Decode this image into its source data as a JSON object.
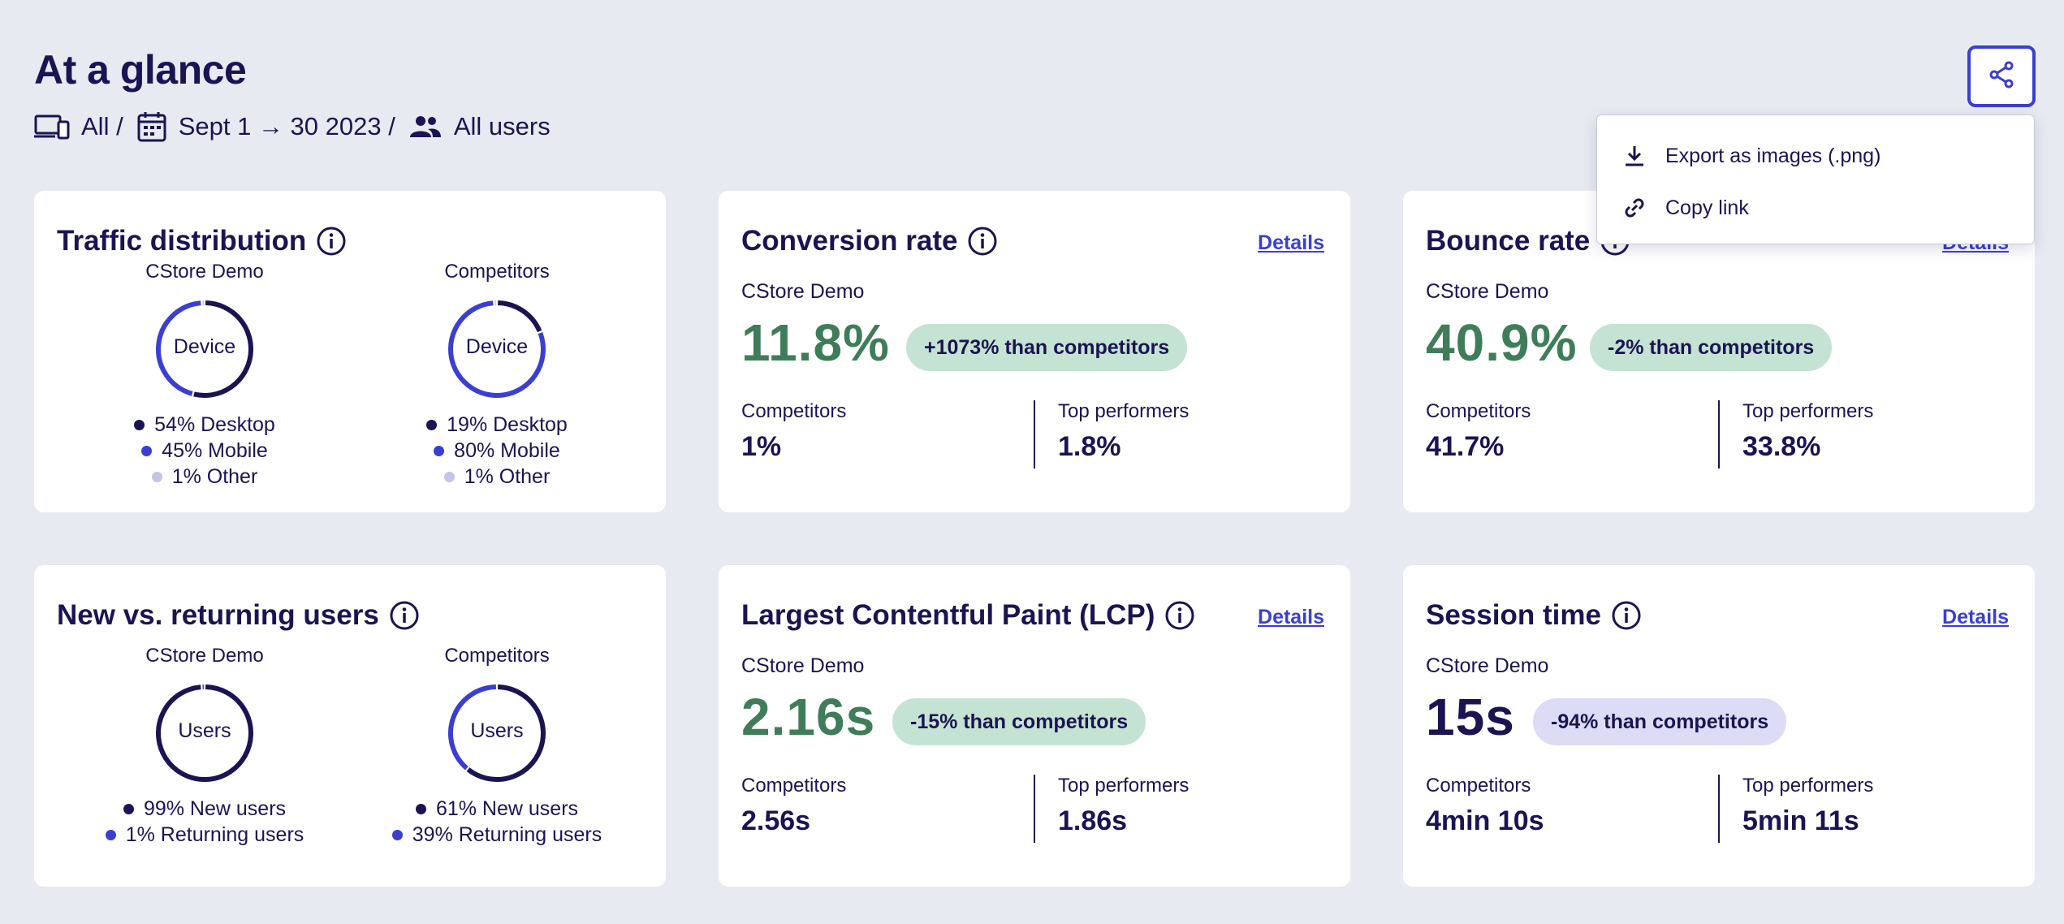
{
  "header": {
    "title": "At a glance",
    "filters": {
      "device": "All /",
      "date": "Sept 1 → 30 2023 /",
      "users": "All users"
    }
  },
  "share_menu": {
    "items": [
      {
        "label": "Export as images (.png)",
        "icon": "download-icon"
      },
      {
        "label": "Copy link",
        "icon": "link-icon"
      }
    ]
  },
  "colors": {
    "dark": "#1b1452",
    "blue": "#3b3fd1",
    "light": "#c4c4ec",
    "green_value": "#3f7d5a",
    "badge_green": "#c5e3d3",
    "badge_purple": "#dcdcf7"
  },
  "traffic": {
    "title": "Traffic distribution",
    "center_label": "Device",
    "left": {
      "name": "CStore Demo",
      "segments": [
        {
          "label": "54% Desktop",
          "pct": 54,
          "color": "#1b1452"
        },
        {
          "label": "45% Mobile",
          "pct": 45,
          "color": "#3b3fd1"
        },
        {
          "label": "1% Other",
          "pct": 1,
          "color": "#c4c4ec"
        }
      ]
    },
    "right": {
      "name": "Competitors",
      "segments": [
        {
          "label": "19% Desktop",
          "pct": 19,
          "color": "#1b1452"
        },
        {
          "label": "80% Mobile",
          "pct": 80,
          "color": "#3b3fd1"
        },
        {
          "label": "1% Other",
          "pct": 1,
          "color": "#c4c4ec"
        }
      ]
    }
  },
  "new_vs_returning": {
    "title": "New vs. returning users",
    "center_label": "Users",
    "left": {
      "name": "CStore Demo",
      "segments": [
        {
          "label": "99% New users",
          "pct": 99,
          "color": "#1b1452"
        },
        {
          "label": "1% Returning users",
          "pct": 1,
          "color": "#3b3fd1"
        }
      ]
    },
    "right": {
      "name": "Competitors",
      "segments": [
        {
          "label": "61% New users",
          "pct": 61,
          "color": "#1b1452"
        },
        {
          "label": "39% Returning users",
          "pct": 39,
          "color": "#3b3fd1"
        }
      ]
    }
  },
  "conversion": {
    "title": "Conversion rate",
    "details": "Details",
    "sub_label": "CStore Demo",
    "value": "11.8%",
    "badge": "+1073% than competitors",
    "competitors_label": "Competitors",
    "competitors_value": "1%",
    "top_label": "Top performers",
    "top_value": "1.8%"
  },
  "bounce": {
    "title": "Bounce rate",
    "details": "Details",
    "sub_label": "CStore Demo",
    "value": "40.9%",
    "badge": "-2% than competitors",
    "competitors_label": "Competitors",
    "competitors_value": "41.7%",
    "top_label": "Top performers",
    "top_value": "33.8%"
  },
  "lcp": {
    "title": "Largest Contentful Paint (LCP)",
    "details": "Details",
    "sub_label": "CStore Demo",
    "value": "2.16s",
    "badge": "-15% than competitors",
    "competitors_label": "Competitors",
    "competitors_value": "2.56s",
    "top_label": "Top performers",
    "top_value": "1.86s"
  },
  "session": {
    "title": "Session time",
    "details": "Details",
    "sub_label": "CStore Demo",
    "value": "15s",
    "badge": "-94% than competitors",
    "competitors_label": "Competitors",
    "competitors_value": "4min 10s",
    "top_label": "Top performers",
    "top_value": "5min 11s"
  }
}
